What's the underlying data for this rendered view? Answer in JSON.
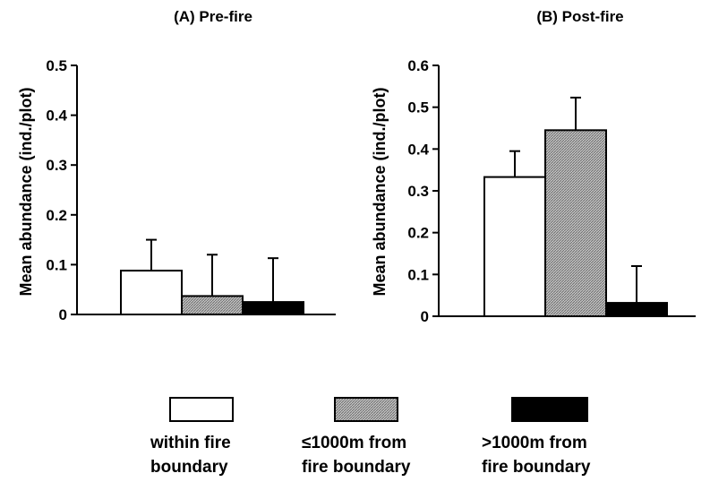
{
  "chart_data": [
    {
      "type": "bar",
      "title": "(A) Pre-fire",
      "ylabel": "Mean abundance (ind./plot)",
      "xlabel": "",
      "ylim": [
        0,
        0.5
      ],
      "yticks": [
        0,
        0.1,
        0.2,
        0.3,
        0.4,
        0.5
      ],
      "ytick_labels": [
        "0",
        "0.1",
        "0.2",
        "0.3",
        "0.4",
        "0.5"
      ],
      "categories": [
        "within fire boundary",
        "≤1000m from fire boundary",
        ">1000m from fire boundary"
      ],
      "values": [
        0.088,
        0.037,
        0.025
      ],
      "error_upper": [
        0.15,
        0.12,
        0.113
      ]
    },
    {
      "type": "bar",
      "title": "(B) Post-fire",
      "ylabel": "Mean abundance (ind./plot)",
      "xlabel": "",
      "ylim": [
        0,
        0.6
      ],
      "yticks": [
        0,
        0.1,
        0.2,
        0.3,
        0.4,
        0.5,
        0.6
      ],
      "ytick_labels": [
        "0",
        "0.1",
        "0.2",
        "0.3",
        "0.4",
        "0.5",
        "0.6"
      ],
      "categories": [
        "within fire boundary",
        "≤1000m from fire boundary",
        ">1000m from fire boundary"
      ],
      "values": [
        0.333,
        0.445,
        0.032
      ],
      "error_upper": [
        0.395,
        0.523,
        0.12
      ]
    }
  ],
  "legend": {
    "placement": "bottom",
    "items": [
      {
        "line1": "within fire",
        "line2": "boundary",
        "fill": "white"
      },
      {
        "line1": "≤1000m from",
        "line2": "fire boundary",
        "fill": "hatched-gray"
      },
      {
        "line1": ">1000m from",
        "line2": "fire boundary",
        "fill": "black"
      }
    ]
  },
  "colors": {
    "series_fills": [
      "#ffffff",
      "#b4b4b4",
      "#000000"
    ],
    "stroke": "#000000"
  }
}
